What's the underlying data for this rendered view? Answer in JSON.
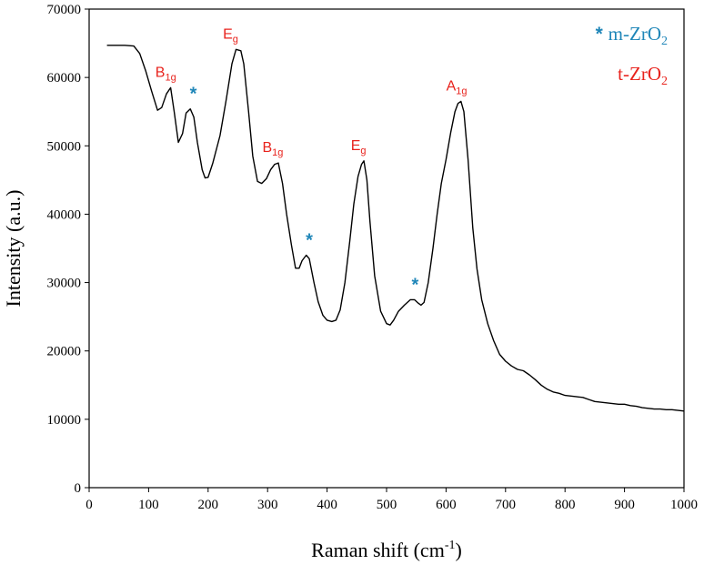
{
  "chart_data": {
    "type": "line",
    "title": "",
    "xlabel": "Raman shift (cm",
    "xlabel_sup": "-1",
    "xlabel_end": ")",
    "ylabel": "Intensity (a.u.)",
    "xlim": [
      0,
      1000
    ],
    "ylim": [
      0,
      70000
    ],
    "xticks": [
      0,
      100,
      200,
      300,
      400,
      500,
      600,
      700,
      800,
      900,
      1000
    ],
    "yticks": [
      0,
      10000,
      20000,
      30000,
      40000,
      50000,
      60000,
      70000
    ],
    "grid": false,
    "line_color": "#000000",
    "series": [
      {
        "points": [
          [
            30,
            64700
          ],
          [
            60,
            64700
          ],
          [
            75,
            64600
          ],
          [
            85,
            63500
          ],
          [
            95,
            61000
          ],
          [
            105,
            58000
          ],
          [
            115,
            55200
          ],
          [
            122,
            55600
          ],
          [
            130,
            57600
          ],
          [
            137,
            58500
          ],
          [
            143,
            55000
          ],
          [
            150,
            50500
          ],
          [
            157,
            51800
          ],
          [
            163,
            54800
          ],
          [
            170,
            55400
          ],
          [
            176,
            54200
          ],
          [
            182,
            50500
          ],
          [
            190,
            46500
          ],
          [
            195,
            45300
          ],
          [
            200,
            45400
          ],
          [
            208,
            47500
          ],
          [
            220,
            51500
          ],
          [
            230,
            56500
          ],
          [
            240,
            62000
          ],
          [
            247,
            64100
          ],
          [
            255,
            63900
          ],
          [
            260,
            62000
          ],
          [
            268,
            55000
          ],
          [
            275,
            48500
          ],
          [
            283,
            44800
          ],
          [
            290,
            44500
          ],
          [
            298,
            45200
          ],
          [
            305,
            46500
          ],
          [
            312,
            47300
          ],
          [
            318,
            47500
          ],
          [
            325,
            44500
          ],
          [
            332,
            40000
          ],
          [
            340,
            35500
          ],
          [
            347,
            32100
          ],
          [
            353,
            32100
          ],
          [
            358,
            33200
          ],
          [
            365,
            34000
          ],
          [
            370,
            33500
          ],
          [
            378,
            30000
          ],
          [
            385,
            27200
          ],
          [
            393,
            25200
          ],
          [
            400,
            24500
          ],
          [
            408,
            24300
          ],
          [
            415,
            24500
          ],
          [
            422,
            26000
          ],
          [
            430,
            30000
          ],
          [
            438,
            36000
          ],
          [
            445,
            41500
          ],
          [
            452,
            45500
          ],
          [
            458,
            47300
          ],
          [
            462,
            47800
          ],
          [
            467,
            45000
          ],
          [
            472,
            39000
          ],
          [
            480,
            31000
          ],
          [
            490,
            25800
          ],
          [
            500,
            24000
          ],
          [
            506,
            23800
          ],
          [
            512,
            24500
          ],
          [
            520,
            25800
          ],
          [
            530,
            26700
          ],
          [
            540,
            27500
          ],
          [
            547,
            27500
          ],
          [
            553,
            27000
          ],
          [
            558,
            26700
          ],
          [
            563,
            27100
          ],
          [
            570,
            30000
          ],
          [
            578,
            35000
          ],
          [
            585,
            40000
          ],
          [
            592,
            44500
          ],
          [
            600,
            48000
          ],
          [
            608,
            52000
          ],
          [
            615,
            55000
          ],
          [
            620,
            56200
          ],
          [
            625,
            56500
          ],
          [
            630,
            55000
          ],
          [
            637,
            48000
          ],
          [
            645,
            38000
          ],
          [
            652,
            32000
          ],
          [
            660,
            27500
          ],
          [
            670,
            24000
          ],
          [
            680,
            21500
          ],
          [
            690,
            19500
          ],
          [
            700,
            18500
          ],
          [
            710,
            17800
          ],
          [
            720,
            17300
          ],
          [
            730,
            17100
          ],
          [
            740,
            16500
          ],
          [
            750,
            15800
          ],
          [
            760,
            15000
          ],
          [
            770,
            14400
          ],
          [
            780,
            14000
          ],
          [
            790,
            13800
          ],
          [
            800,
            13500
          ],
          [
            810,
            13400
          ],
          [
            820,
            13300
          ],
          [
            830,
            13200
          ],
          [
            840,
            12900
          ],
          [
            850,
            12600
          ],
          [
            860,
            12500
          ],
          [
            870,
            12400
          ],
          [
            880,
            12300
          ],
          [
            890,
            12200
          ],
          [
            900,
            12200
          ],
          [
            910,
            12000
          ],
          [
            920,
            11900
          ],
          [
            930,
            11700
          ],
          [
            940,
            11600
          ],
          [
            950,
            11500
          ],
          [
            960,
            11500
          ],
          [
            970,
            11400
          ],
          [
            980,
            11400
          ],
          [
            990,
            11300
          ],
          [
            1000,
            11200
          ]
        ]
      }
    ],
    "peak_labels": [
      {
        "name": "B",
        "sub": "1g",
        "x": 138,
        "y": 58500
      },
      {
        "name": "E",
        "sub": "g",
        "x": 247,
        "y": 64100
      },
      {
        "name": "B",
        "sub": "1g",
        "x": 318,
        "y": 47500
      },
      {
        "name": "E",
        "sub": "g",
        "x": 462,
        "y": 47800
      },
      {
        "name": "A",
        "sub": "1g",
        "x": 627,
        "y": 56500
      }
    ],
    "m_markers": [
      {
        "symbol": "*",
        "x": 172,
        "y": 55400
      },
      {
        "symbol": "*",
        "x": 367,
        "y": 34000
      },
      {
        "symbol": "*",
        "x": 545,
        "y": 27500
      }
    ],
    "legend": {
      "placement": "top-right",
      "entries": [
        {
          "symbol": "*",
          "label": "m-ZrO",
          "sub": "2",
          "color": "#1f86b8"
        },
        {
          "symbol": "",
          "label": "t-ZrO",
          "sub": "2",
          "color": "#e8221c"
        }
      ]
    }
  }
}
